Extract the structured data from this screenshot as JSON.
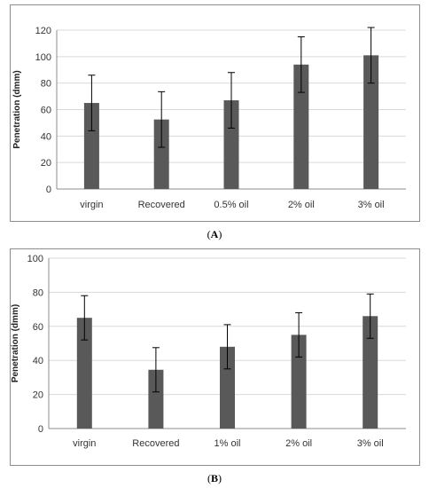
{
  "chart_data": [
    {
      "type": "bar",
      "panel": "A",
      "categories": [
        "virgin",
        "Recovered",
        "0.5% oil",
        "2% oil",
        "3% oil"
      ],
      "values": [
        65,
        52.5,
        67,
        94,
        101
      ],
      "errors": [
        21,
        21,
        21,
        21,
        21
      ],
      "ylabel": "Penetration (dmm)",
      "xlabel": "",
      "ylim": [
        0,
        120
      ],
      "yticks": [
        0,
        20,
        40,
        60,
        80,
        100,
        120
      ],
      "grid": true,
      "bar_color": "#595959"
    },
    {
      "type": "bar",
      "panel": "B",
      "categories": [
        "virgin",
        "Recovered",
        "1% oil",
        "2% oil",
        "3% oil"
      ],
      "values": [
        65,
        34.5,
        48,
        55,
        66
      ],
      "errors": [
        13,
        13,
        13,
        13,
        13
      ],
      "ylabel": "Penetration (dmm)",
      "xlabel": "",
      "ylim": [
        0,
        100
      ],
      "yticks": [
        0,
        20,
        40,
        60,
        80,
        100
      ],
      "grid": true,
      "bar_color": "#595959"
    }
  ],
  "labels": {
    "a": "A",
    "b": "B"
  }
}
